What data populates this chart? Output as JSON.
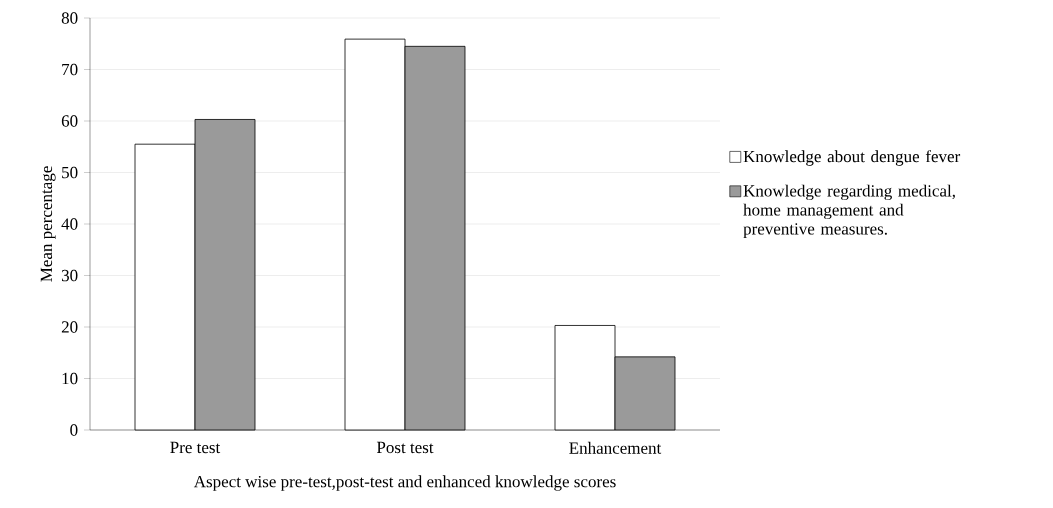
{
  "chart_data": {
    "type": "bar",
    "xlabel": "Aspect wise  pre-test,post-test and enhanced knowledge scores",
    "ylabel": "Mean percentage",
    "categories": [
      "Pre test",
      "Post test",
      "Enhancement"
    ],
    "series": [
      {
        "name": "Knowledge about dengue fever",
        "color": "#ffffff",
        "values": [
          55.5,
          75.9,
          20.3
        ]
      },
      {
        "name": "Knowledge regarding medical, home management and preventive measures.",
        "color": "#9a9a9a",
        "values": [
          60.3,
          74.5,
          14.2
        ]
      }
    ],
    "ylim": [
      0,
      80
    ],
    "yticks": [
      0,
      10,
      20,
      30,
      40,
      50,
      60,
      70,
      80
    ],
    "grid": "y",
    "legend": "right"
  }
}
